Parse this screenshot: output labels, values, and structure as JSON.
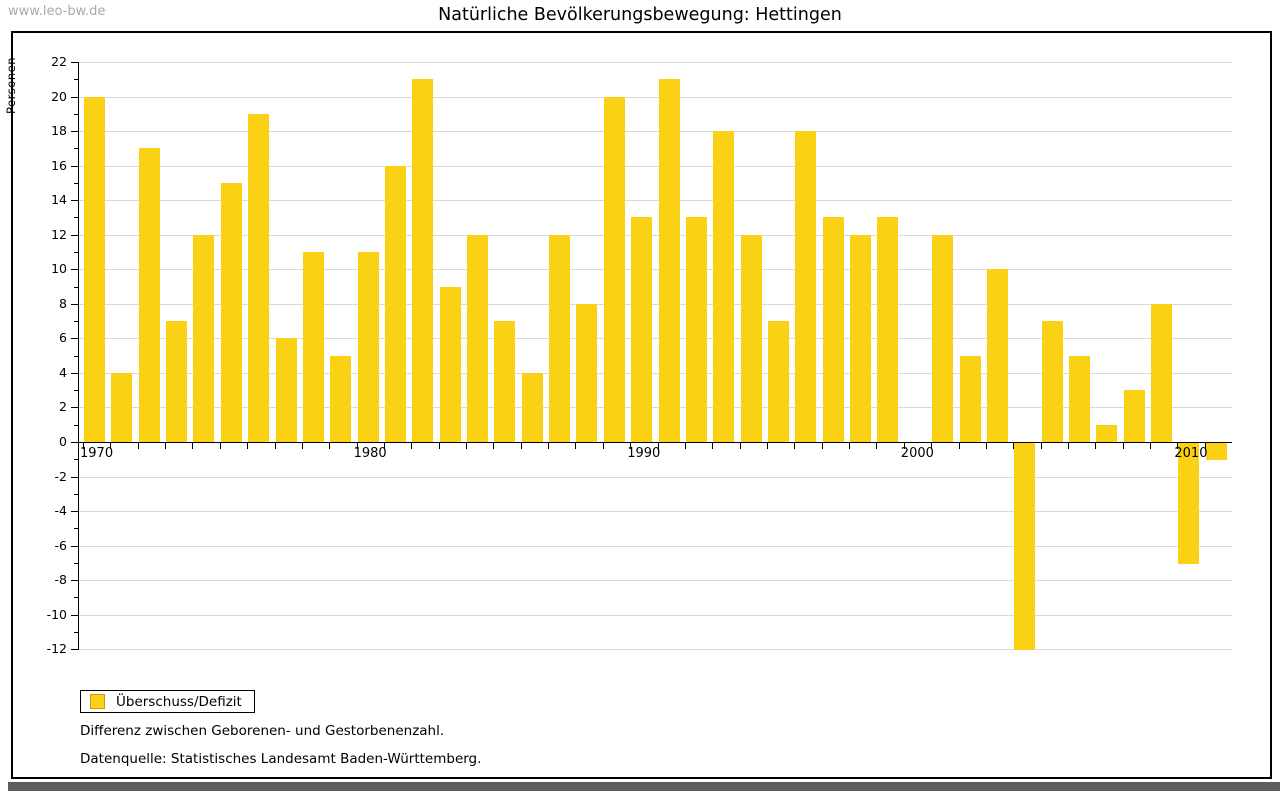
{
  "watermark": "www.leo-bw.de",
  "title": "Natürliche Bevölkerungsbewegung: Hettingen",
  "legend": {
    "label": "Überschuss/Defizit"
  },
  "notes": {
    "line1": "Differenz zwischen Geborenen- und Gestorbenenzahl.",
    "line2": "Datenquelle: Statistisches Landesamt Baden-Württemberg."
  },
  "chart_data": {
    "type": "bar",
    "title": "Natürliche Bevölkerungsbewegung: Hettingen",
    "xlabel": "",
    "ylabel": "Personen",
    "ylim": [
      -12,
      22
    ],
    "ytick_step": 2,
    "grid": true,
    "legend_position": "bottom-left",
    "series_name": "Überschuss/Defizit",
    "bar_color": "#FBD116",
    "swatch_border_color": "#C89B0E",
    "grid_color": "#D9D9D9",
    "x_major_ticks": [
      1970,
      1980,
      1990,
      2000,
      2010
    ],
    "categories": [
      1970,
      1971,
      1972,
      1973,
      1974,
      1975,
      1976,
      1977,
      1978,
      1979,
      1980,
      1981,
      1982,
      1983,
      1984,
      1985,
      1986,
      1987,
      1988,
      1989,
      1990,
      1991,
      1992,
      1993,
      1994,
      1995,
      1996,
      1997,
      1998,
      1999,
      2000,
      2001,
      2002,
      2003,
      2004,
      2005,
      2006,
      2007,
      2008,
      2009,
      2010,
      2011
    ],
    "values": [
      20,
      4,
      17,
      7,
      12,
      15,
      19,
      6,
      11,
      5,
      11,
      16,
      21,
      9,
      12,
      7,
      4,
      12,
      8,
      20,
      13,
      21,
      13,
      18,
      12,
      7,
      18,
      13,
      12,
      13,
      0,
      12,
      5,
      10,
      -12,
      7,
      5,
      1,
      3,
      8,
      -7,
      -1
    ]
  }
}
